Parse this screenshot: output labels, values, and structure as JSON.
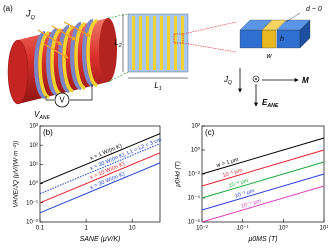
{
  "panel_a": {
    "label": "(a)",
    "coil_flux": "JQ",
    "voltmeter": "V",
    "voltage": "VANE",
    "length_1": "L1",
    "length_2": "L2",
    "gap": "d ~ 0",
    "height": "h",
    "width": "w",
    "heat_flux": "JQ",
    "magnetization": "M",
    "field": "EANE"
  },
  "chart_data": [
    {
      "type": "line",
      "panel": "(b)",
      "x_label": "SANE (μV/K)",
      "y_label": "VANE/JQ (μV/(W·m⁻²))",
      "log": true,
      "x": [
        0.1,
        40
      ],
      "xlim": [
        0.1,
        40
      ],
      "ylim": [
        0.01,
        1000
      ],
      "xticks": [
        0.1,
        1,
        10
      ],
      "yticks": [
        {
          "value": 0.01,
          "label": "10⁻²"
        },
        {
          "value": 0.1,
          "label": "10⁻¹"
        },
        {
          "value": 1,
          "label": "10⁰"
        },
        {
          "value": 10,
          "label": "10¹"
        },
        {
          "value": 100,
          "label": "10²"
        },
        {
          "value": 1000,
          "label": "10³"
        }
      ],
      "series": [
        {
          "name": "κ = 1 W/(m K)",
          "color": "#000000",
          "dash": false,
          "values": [
            1,
            400
          ]
        },
        {
          "name": "κ = 30 W/(m K), L1 = L2 = 3 cm",
          "color": "#1a3fd1",
          "dash": true,
          "values": [
            0.3,
            120
          ]
        },
        {
          "name": "κ = 10 W/(m K)",
          "color": "#e8202a",
          "dash": false,
          "values": [
            0.1,
            40
          ]
        },
        {
          "name": "κ = 30 W/(m K)",
          "color": "#2044d8",
          "dash": false,
          "values": [
            0.03,
            12
          ]
        }
      ]
    },
    {
      "type": "line",
      "panel": "(c)",
      "x_label": "μ0MS (T)",
      "y_label": "μ0Hd (T)",
      "log": true,
      "x": [
        0.01,
        10
      ],
      "xlim": [
        0.01,
        10
      ],
      "ylim": [
        1e-06,
        100
      ],
      "xticks": [
        {
          "value": 0.01,
          "label": "10⁻²"
        },
        {
          "value": 0.1,
          "label": "10⁻¹"
        },
        {
          "value": 1,
          "label": "10⁰"
        },
        {
          "value": 10,
          "label": "10¹"
        }
      ],
      "yticks": [
        {
          "value": 1e-06,
          "label": "10⁻⁶"
        },
        {
          "value": 0.0001,
          "label": "10⁻⁴"
        },
        {
          "value": 0.01,
          "label": "10⁻²"
        },
        {
          "value": 1,
          "label": "10⁰"
        },
        {
          "value": 100,
          "label": "10²"
        }
      ],
      "series": [
        {
          "name": "w = 1 μm",
          "color": "#000000",
          "dash": false,
          "values": [
            0.01,
            10
          ]
        },
        {
          "name": "10⁻¹ μm",
          "color": "#e8202a",
          "dash": false,
          "values": [
            0.001,
            1
          ]
        },
        {
          "name": "10⁻² μm",
          "color": "#1aa83a",
          "dash": false,
          "values": [
            0.0001,
            0.1
          ]
        },
        {
          "name": "10⁻³ μm",
          "color": "#2a3ee0",
          "dash": false,
          "values": [
            1e-05,
            0.01
          ]
        },
        {
          "name": "10⁻⁴ μm",
          "color": "#e040c0",
          "dash": false,
          "values": [
            1e-06,
            0.001
          ]
        }
      ]
    }
  ]
}
